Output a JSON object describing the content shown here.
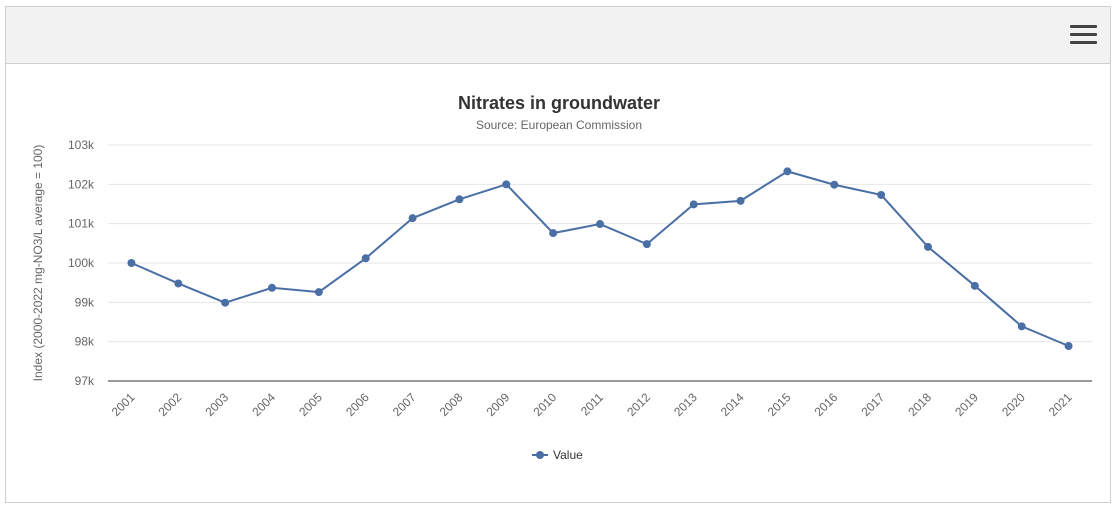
{
  "toolbar": {
    "menu_icon": "hamburger-menu-icon"
  },
  "chart_data": {
    "type": "line",
    "title": "Nitrates in groundwater",
    "subtitle": "Source: European Commission",
    "ylabel": "Index (2000-2022 mg-NO3/L average = 100)",
    "xlabel": "",
    "categories": [
      "2001",
      "2002",
      "2003",
      "2004",
      "2005",
      "2006",
      "2007",
      "2008",
      "2009",
      "2010",
      "2011",
      "2012",
      "2013",
      "2014",
      "2015",
      "2016",
      "2017",
      "2018",
      "2019",
      "2020",
      "2021"
    ],
    "series": [
      {
        "name": "Value",
        "color": "#4a6fa5",
        "values": [
          100000,
          99480,
          98990,
          99370,
          99260,
          100120,
          101140,
          101620,
          102000,
          100760,
          100990,
          100480,
          101490,
          101580,
          102330,
          101990,
          101730,
          100410,
          99420,
          98390,
          97890
        ]
      }
    ],
    "ylim": [
      97000,
      103000
    ],
    "yticks": [
      97000,
      98000,
      99000,
      100000,
      101000,
      102000,
      103000
    ],
    "ytick_labels": [
      "97k",
      "98k",
      "99k",
      "100k",
      "101k",
      "102k",
      "103k"
    ],
    "grid": true,
    "legend": "bottom-center"
  }
}
